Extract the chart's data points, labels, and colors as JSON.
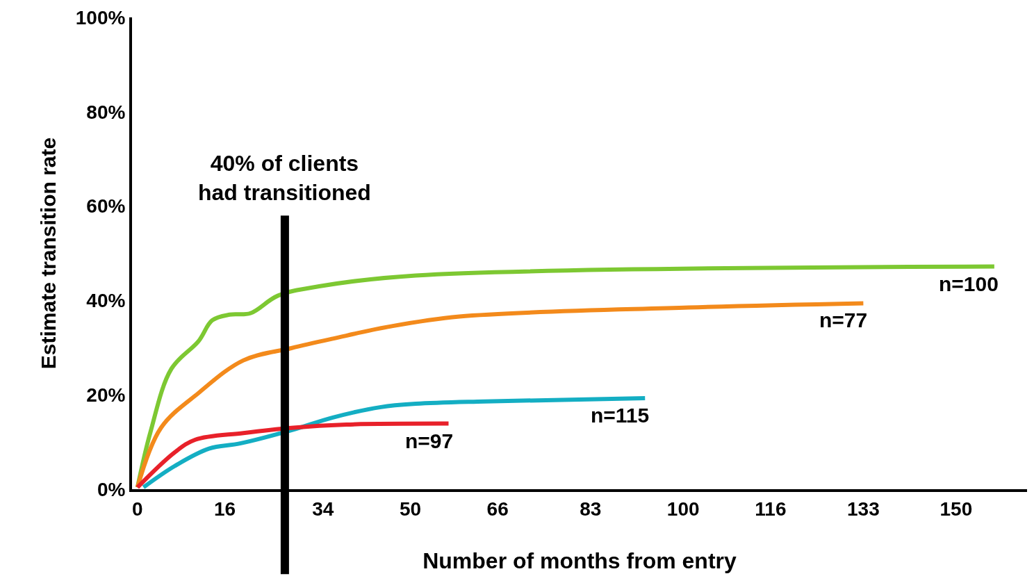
{
  "chart_data": {
    "type": "line",
    "xlabel": "Number of months from entry",
    "ylabel": "Estimate transition rate",
    "xlim": [
      -1,
      163
    ],
    "xticks": [
      0,
      16,
      34,
      50,
      66,
      83,
      100,
      116,
      133,
      150
    ],
    "ylim": [
      0,
      100
    ],
    "yticks": [
      {
        "value": 0,
        "label": "0%"
      },
      {
        "value": 20,
        "label": "20%"
      },
      {
        "value": 40,
        "label": "40%"
      },
      {
        "value": 60,
        "label": "60%"
      },
      {
        "value": 80,
        "label": "80%"
      },
      {
        "value": 100,
        "label": "100%"
      }
    ],
    "series": [
      {
        "name": "n=100",
        "color": "#7dc832",
        "x": [
          0,
          2.4,
          6.2,
          11.2,
          13.7,
          16.9,
          20.7,
          25.7,
          33.3,
          51,
          157
        ],
        "values": [
          0.4,
          12.2,
          25.5,
          31.4,
          35.8,
          37,
          37.3,
          41,
          43,
          45.3,
          47.2
        ]
      },
      {
        "name": "n=77",
        "color": "#f38a1b",
        "x": [
          0,
          4.3,
          11.2,
          19.4,
          28.2,
          35.8,
          45.9,
          59,
          101,
          133
        ],
        "values": [
          0.4,
          13,
          20.4,
          27.3,
          29.9,
          31.9,
          34.4,
          36.6,
          38.5,
          39.4
        ]
      },
      {
        "name": "n=115",
        "color": "#14aec3",
        "x": [
          1.1,
          6.8,
          13.1,
          18.8,
          28.2,
          35.8,
          44.6,
          51,
          63.6,
          93
        ],
        "values": [
          0.4,
          4.9,
          8.6,
          9.7,
          12.5,
          15.2,
          17.4,
          18.1,
          18.6,
          19.3
        ]
      },
      {
        "name": "n=97",
        "color": "#e8212a",
        "x": [
          0,
          6.8,
          10.6,
          19.4,
          28.2,
          38.3,
          57
        ],
        "values": [
          0.4,
          7.8,
          10.5,
          11.9,
          13,
          13.7,
          13.9
        ]
      }
    ],
    "ref_lines": [
      {
        "axis": "x",
        "value": 27,
        "label": "40% of clients\nhad transitioned",
        "color": "#000000"
      }
    ],
    "legend": false,
    "marker": "none",
    "line_style": "solid"
  }
}
